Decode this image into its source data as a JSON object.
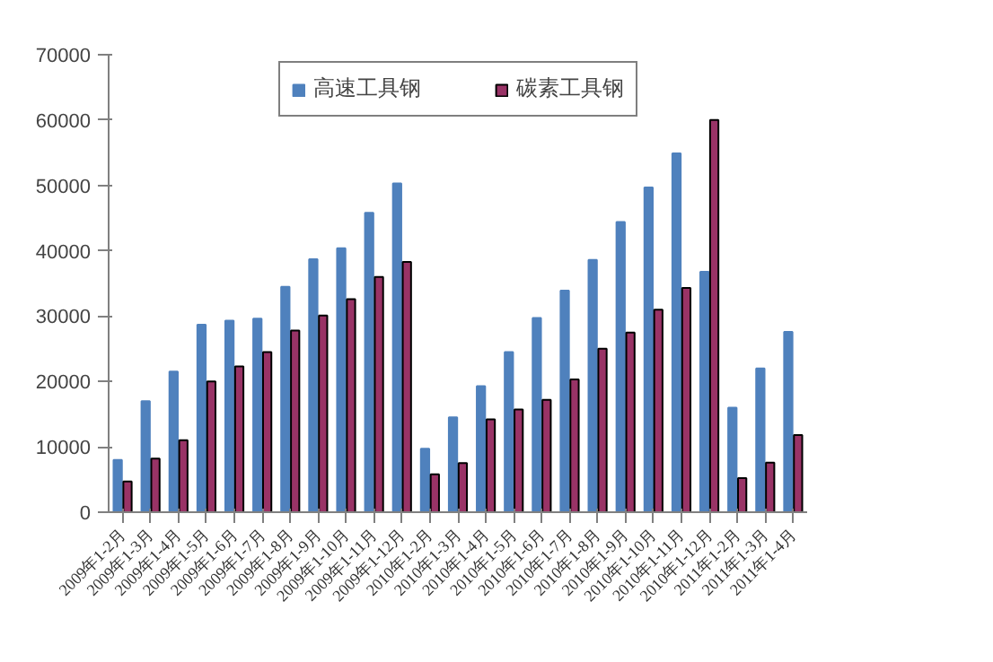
{
  "chart_data": {
    "type": "bar",
    "categories": [
      "2009年1-2月",
      "2009年1-3月",
      "2009年1-4月",
      "2009年1-5月",
      "2009年1-6月",
      "2009年1-7月",
      "2009年1-8月",
      "2009年1-9月",
      "2009年1-10月",
      "2009年1-11月",
      "2009年1-12月",
      "2010年1-2月",
      "2010年1-3月",
      "2010年1-4月",
      "2010年1-5月",
      "2010年1-6月",
      "2010年1-7月",
      "2010年1-8月",
      "2010年1-9月",
      "2010年1-10月",
      "2010年1-11月",
      "2010年1-12月",
      "2011年1-2月",
      "2011年1-3月",
      "2011年1-4月"
    ],
    "series": [
      {
        "name": "高速工具钢",
        "color": "#4f81bd",
        "values": [
          8000,
          17000,
          21500,
          28700,
          29300,
          29600,
          34500,
          38700,
          40400,
          45800,
          50300,
          9700,
          14500,
          19300,
          24500,
          29700,
          33900,
          38600,
          44400,
          49700,
          54900,
          36800,
          16000,
          22000,
          27600
        ]
      },
      {
        "name": "碳素工具钢",
        "color": "#993366",
        "values": [
          4700,
          8200,
          11000,
          20000,
          22300,
          24500,
          27800,
          30100,
          32600,
          36000,
          38300,
          5800,
          7500,
          14200,
          15700,
          17200,
          20300,
          25000,
          27500,
          31000,
          34300,
          60000,
          5200,
          7600,
          11800
        ]
      }
    ],
    "ylim": [
      0,
      70000
    ],
    "yticks": [
      0,
      10000,
      20000,
      30000,
      40000,
      50000,
      60000,
      70000
    ],
    "grid": false,
    "legend": "top"
  }
}
